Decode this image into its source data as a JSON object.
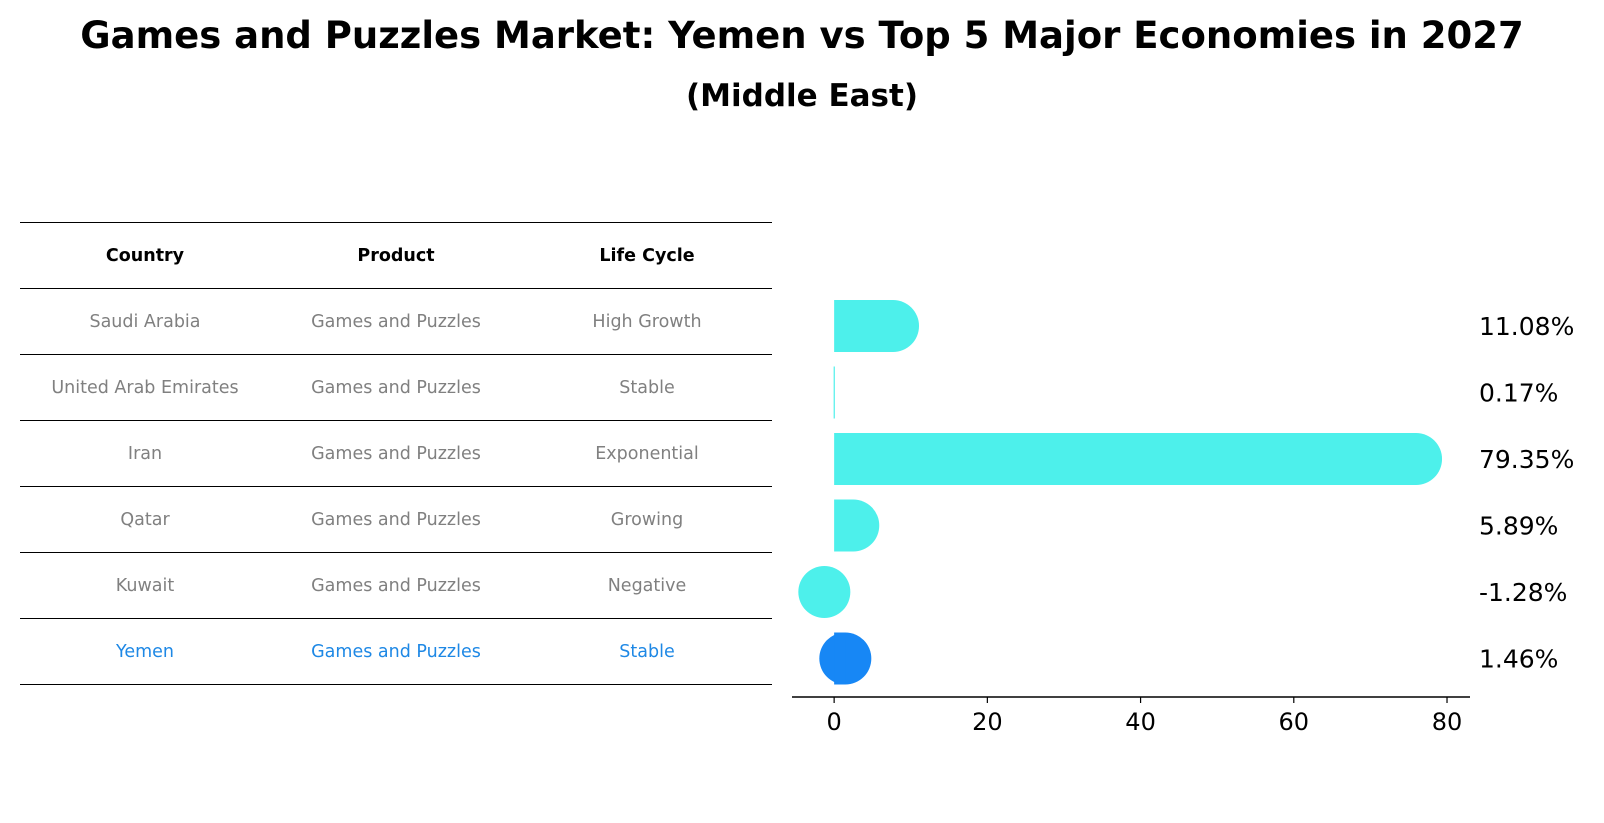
{
  "title": "Games and Puzzles Market: Yemen vs Top 5 Major Economies in 2027",
  "subtitle": "(Middle East)",
  "table": {
    "headers": [
      "Country",
      "Product",
      "Life Cycle"
    ],
    "rows": [
      {
        "country": "Saudi Arabia",
        "product": "Games and Puzzles",
        "life_cycle": "High Growth"
      },
      {
        "country": "United Arab Emirates",
        "product": "Games and Puzzles",
        "life_cycle": "Stable"
      },
      {
        "country": "Iran",
        "product": "Games and Puzzles",
        "life_cycle": "Exponential"
      },
      {
        "country": "Qatar",
        "product": "Games and Puzzles",
        "life_cycle": "Growing"
      },
      {
        "country": "Kuwait",
        "product": "Games and Puzzles",
        "life_cycle": "Negative"
      },
      {
        "country": "Yemen",
        "product": "Games and Puzzles",
        "life_cycle": "Stable"
      }
    ]
  },
  "colors": {
    "bar": "#4df0eb",
    "highlight": "#1787f5",
    "highlight_text": "#1e88e5",
    "muted_text": "#808080"
  },
  "chart_data": {
    "type": "bar",
    "orientation": "horizontal",
    "categories": [
      "Saudi Arabia",
      "United Arab Emirates",
      "Iran",
      "Qatar",
      "Kuwait",
      "Yemen"
    ],
    "values": [
      11.08,
      0.17,
      79.35,
      5.89,
      -1.28,
      1.46
    ],
    "value_labels": [
      "11.08%",
      "0.17%",
      "79.35%",
      "5.89%",
      "-1.28%",
      "1.46%"
    ],
    "highlight": "Yemen",
    "xticks": [
      0,
      20,
      40,
      60,
      80
    ],
    "xlim": [
      -5.5,
      83
    ],
    "xlabel": "",
    "ylabel": "",
    "grid": false
  }
}
